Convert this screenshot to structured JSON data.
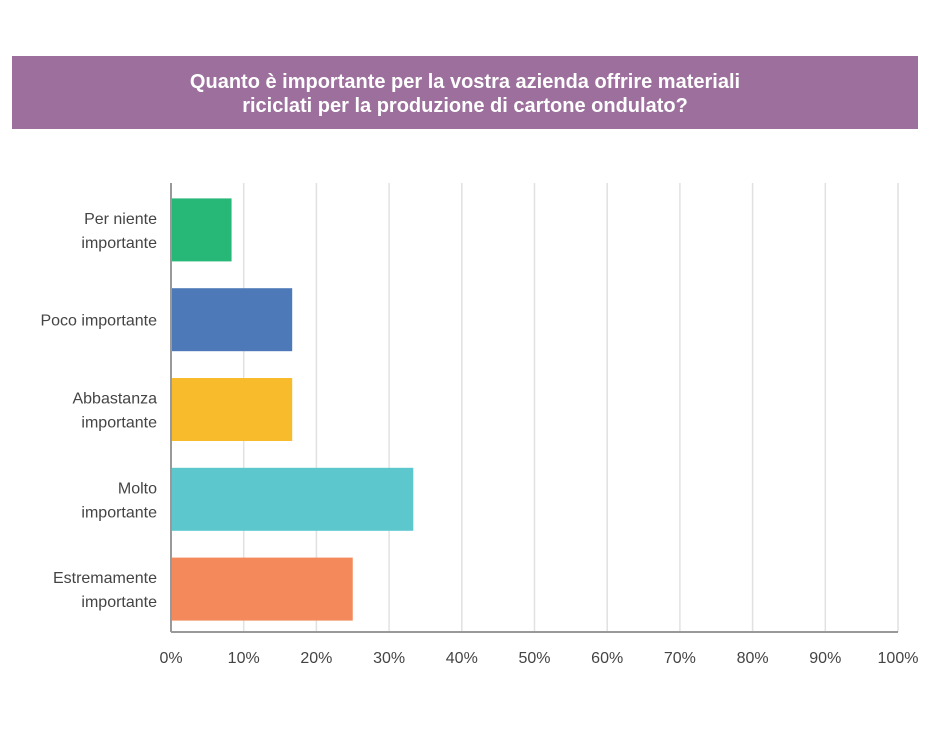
{
  "chart_data": {
    "type": "bar",
    "orientation": "horizontal",
    "title_lines": [
      "Quanto è importante per la vostra azienda offrire materiali",
      "riciclati per la produzione di cartone ondulato?"
    ],
    "categories": [
      [
        "Per niente",
        "importante"
      ],
      [
        "Poco importante"
      ],
      [
        "Abbastanza",
        "importante"
      ],
      [
        "Molto",
        "importante"
      ],
      [
        "Estremamente",
        "importante"
      ]
    ],
    "values": [
      8.33,
      16.67,
      16.67,
      33.33,
      25.0
    ],
    "colors": [
      "#27b877",
      "#4d79b8",
      "#f8bb2c",
      "#5cc8cd",
      "#f48a5b"
    ],
    "xlim": [
      0,
      100
    ],
    "xticks": [
      "0%",
      "10%",
      "20%",
      "30%",
      "40%",
      "50%",
      "60%",
      "70%",
      "80%",
      "90%",
      "100%"
    ],
    "grid": true,
    "legend": "none"
  },
  "theme": {
    "title_bg": "#9c6f9c",
    "title_color": "#ffffff",
    "grid_color": "#e1e1e1",
    "axis_color": "#999999",
    "label_color": "#444444"
  }
}
